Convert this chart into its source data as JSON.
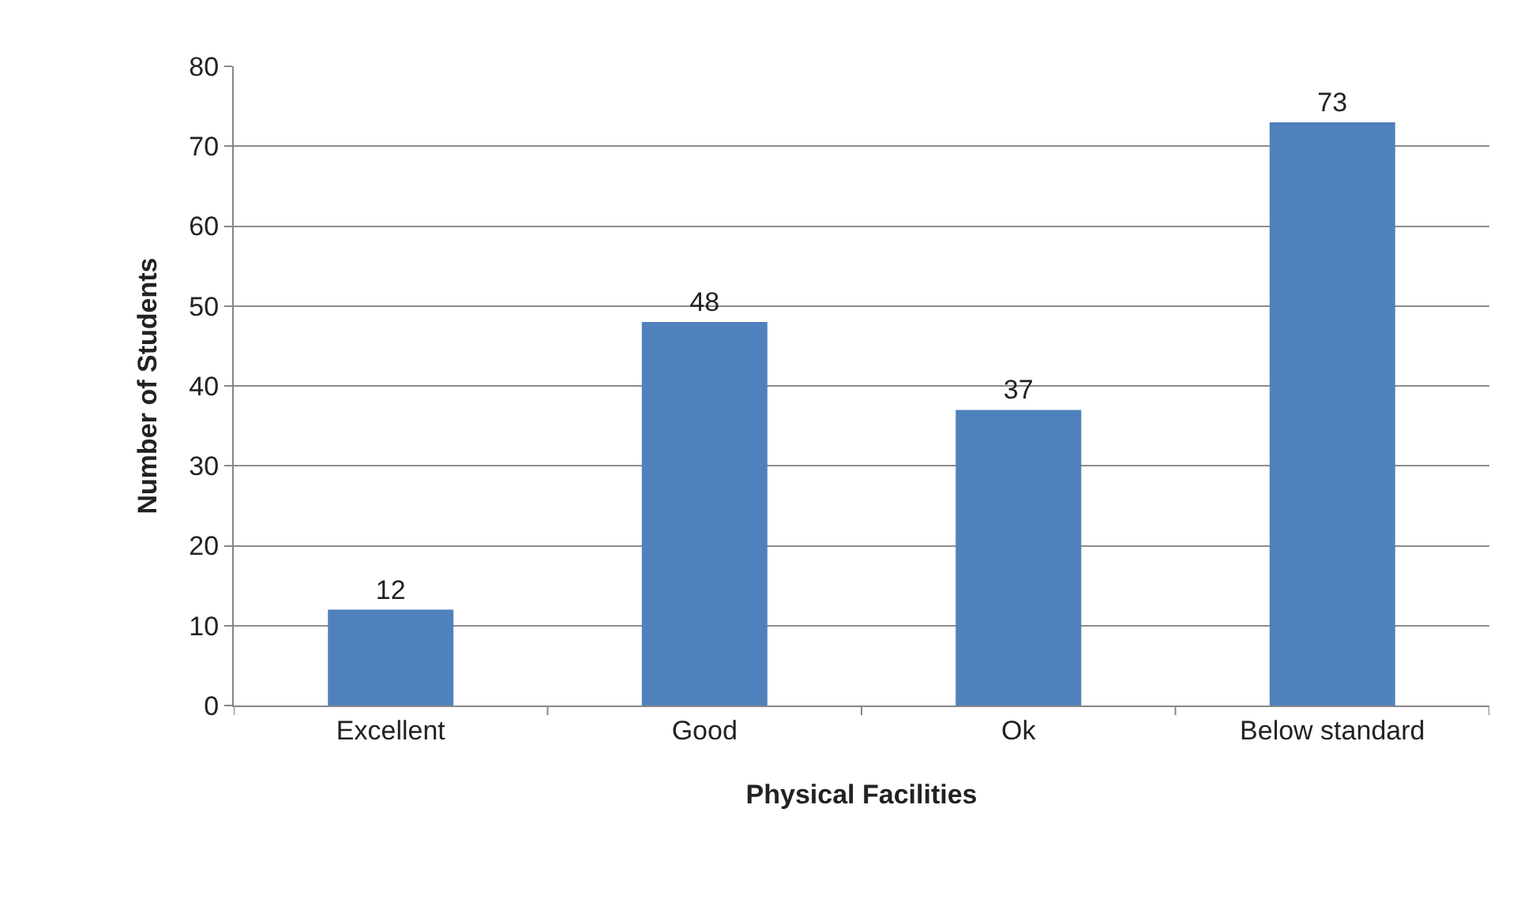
{
  "chart_data": {
    "type": "bar",
    "xlabel": "Physical Facilities",
    "ylabel": "Number of Students",
    "categories": [
      "Excellent",
      "Good",
      "Ok",
      "Below standard"
    ],
    "values": [
      12,
      48,
      37,
      73
    ],
    "color": "#4f81bd",
    "ylim": [
      0,
      80
    ],
    "yticks": [
      0,
      10,
      20,
      30,
      40,
      50,
      60,
      70,
      80
    ],
    "grid": "y",
    "data_labels": true
  }
}
